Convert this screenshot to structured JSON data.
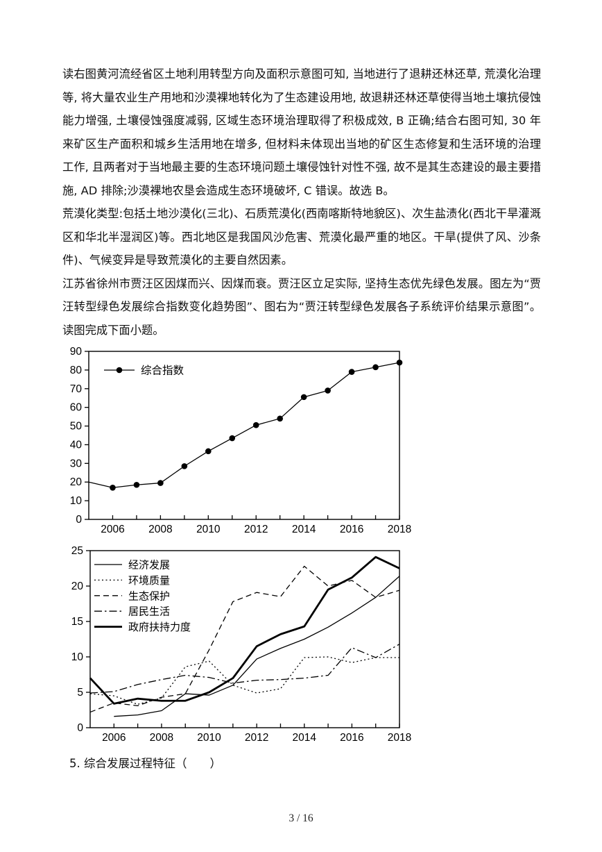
{
  "document": {
    "paragraphs": [
      "读右图黄河流经省区土地利用转型方向及面积示意图可知, 当地进行了退耕还林还草, 荒漠化治理等, 将大量农业生产用地和沙漠裸地转化为了生态建设用地, 故退耕还林还草使得当地土壤抗侵蚀能力增强, 土壤侵蚀强度减弱, 区域生态环境治理取得了积极成效, B 正确;结合右图可知, 30 年来矿区生产面积和城乡生活用地在增多, 但材料未体现出当地的矿区生态修复和生活环境的治理工作, 且两者对于当地最主要的生态环境问题土壤侵蚀针对性不强, 故不是其生态建设的最主要措施, AD 排除;沙漠裸地农垦会造成生态环境破坏, C 错误。故选 B。",
      "荒漠化类型:包括土地沙漠化(三北)、石质荒漠化(西南喀斯特地貌区)、次生盐渍化(西北干旱灌溉区和华北半湿润区)等。西北地区是我国风沙危害、荒漠化最严重的地区。干旱(提供了风、沙条件)、气候变异是导致荒漠化的主要自然因素。",
      "江苏省徐州市贾汪区因煤而兴、因煤而衰。贾汪区立足实际, 坚持生态优先绿色发展。图左为“贾汪转型绿色发展综合指数变化趋势图”、图右为“贾汪转型绿色发展各子系统评价结果示意图”。读图完成下面小题。"
    ],
    "question": "5. 综合发展过程特征（　　）",
    "footer": "3 / 16"
  },
  "chart_colors": {
    "line": "#000000",
    "background": "#ffffff"
  },
  "chart_data": [
    {
      "type": "line",
      "title": "贾汪转型绿色发展综合指数变化趋势图",
      "x": [
        2005,
        2006,
        2007,
        2008,
        2009,
        2010,
        2011,
        2012,
        2013,
        2014,
        2015,
        2016,
        2017,
        2018
      ],
      "xtick_labels": [
        2006,
        2008,
        2010,
        2012,
        2014,
        2016,
        2018
      ],
      "ylim": [
        0,
        90
      ],
      "ytick_step": 10,
      "grid": false,
      "legend_position": "top-left-inside",
      "series": [
        {
          "name": "综合指数",
          "line": "solid",
          "width": 1.3,
          "marker": "circle",
          "values": [
            20,
            17,
            18.5,
            19.5,
            28.5,
            36.5,
            43.5,
            50.5,
            54,
            65.5,
            69,
            79,
            81.5,
            84
          ]
        }
      ]
    },
    {
      "type": "line",
      "title": "贾汪转型绿色发展各子系统评价结果示意图",
      "x": [
        2005,
        2006,
        2007,
        2008,
        2009,
        2010,
        2011,
        2012,
        2013,
        2014,
        2015,
        2016,
        2017,
        2018
      ],
      "xtick_labels": [
        2006,
        2008,
        2010,
        2012,
        2014,
        2016,
        2018
      ],
      "ylim": [
        0,
        25
      ],
      "ytick_step": 5,
      "grid": false,
      "legend_position": "top-left-inside",
      "series": [
        {
          "name": "经济发展",
          "line": "solid",
          "width": 1.3,
          "marker": "none",
          "values": [
            null,
            1.6,
            1.8,
            2.4,
            4.8,
            4.6,
            6.0,
            9.7,
            11.2,
            12.5,
            14.2,
            16.2,
            18.4,
            21.4
          ]
        },
        {
          "name": "环境质量",
          "line": "dotted",
          "width": 1.3,
          "marker": "none",
          "values": [
            4.8,
            4.5,
            3.3,
            4.2,
            8.6,
            9.4,
            6.0,
            4.9,
            5.5,
            9.9,
            10.0,
            9.2,
            9.9,
            9.9
          ]
        },
        {
          "name": "生态保护",
          "line": "dashed",
          "width": 1.3,
          "marker": "none",
          "values": [
            2.2,
            3.5,
            3.1,
            4.3,
            4.8,
            11.0,
            17.8,
            19.1,
            18.5,
            22.8,
            20.0,
            20.8,
            18.4,
            19.4
          ]
        },
        {
          "name": "居民生活",
          "line": "dashdot",
          "width": 1.3,
          "marker": "none",
          "values": [
            4.9,
            5.1,
            6.1,
            6.8,
            7.4,
            7.1,
            6.3,
            6.7,
            6.8,
            7.0,
            7.4,
            11.3,
            9.9,
            11.8
          ]
        },
        {
          "name": "政府扶持力度",
          "line": "solid",
          "width": 2.8,
          "marker": "none",
          "values": [
            7.0,
            3.4,
            4.1,
            3.8,
            3.8,
            5.0,
            7.0,
            11.5,
            13.2,
            14.3,
            19.5,
            21.2,
            24.1,
            22.5
          ]
        }
      ]
    }
  ]
}
